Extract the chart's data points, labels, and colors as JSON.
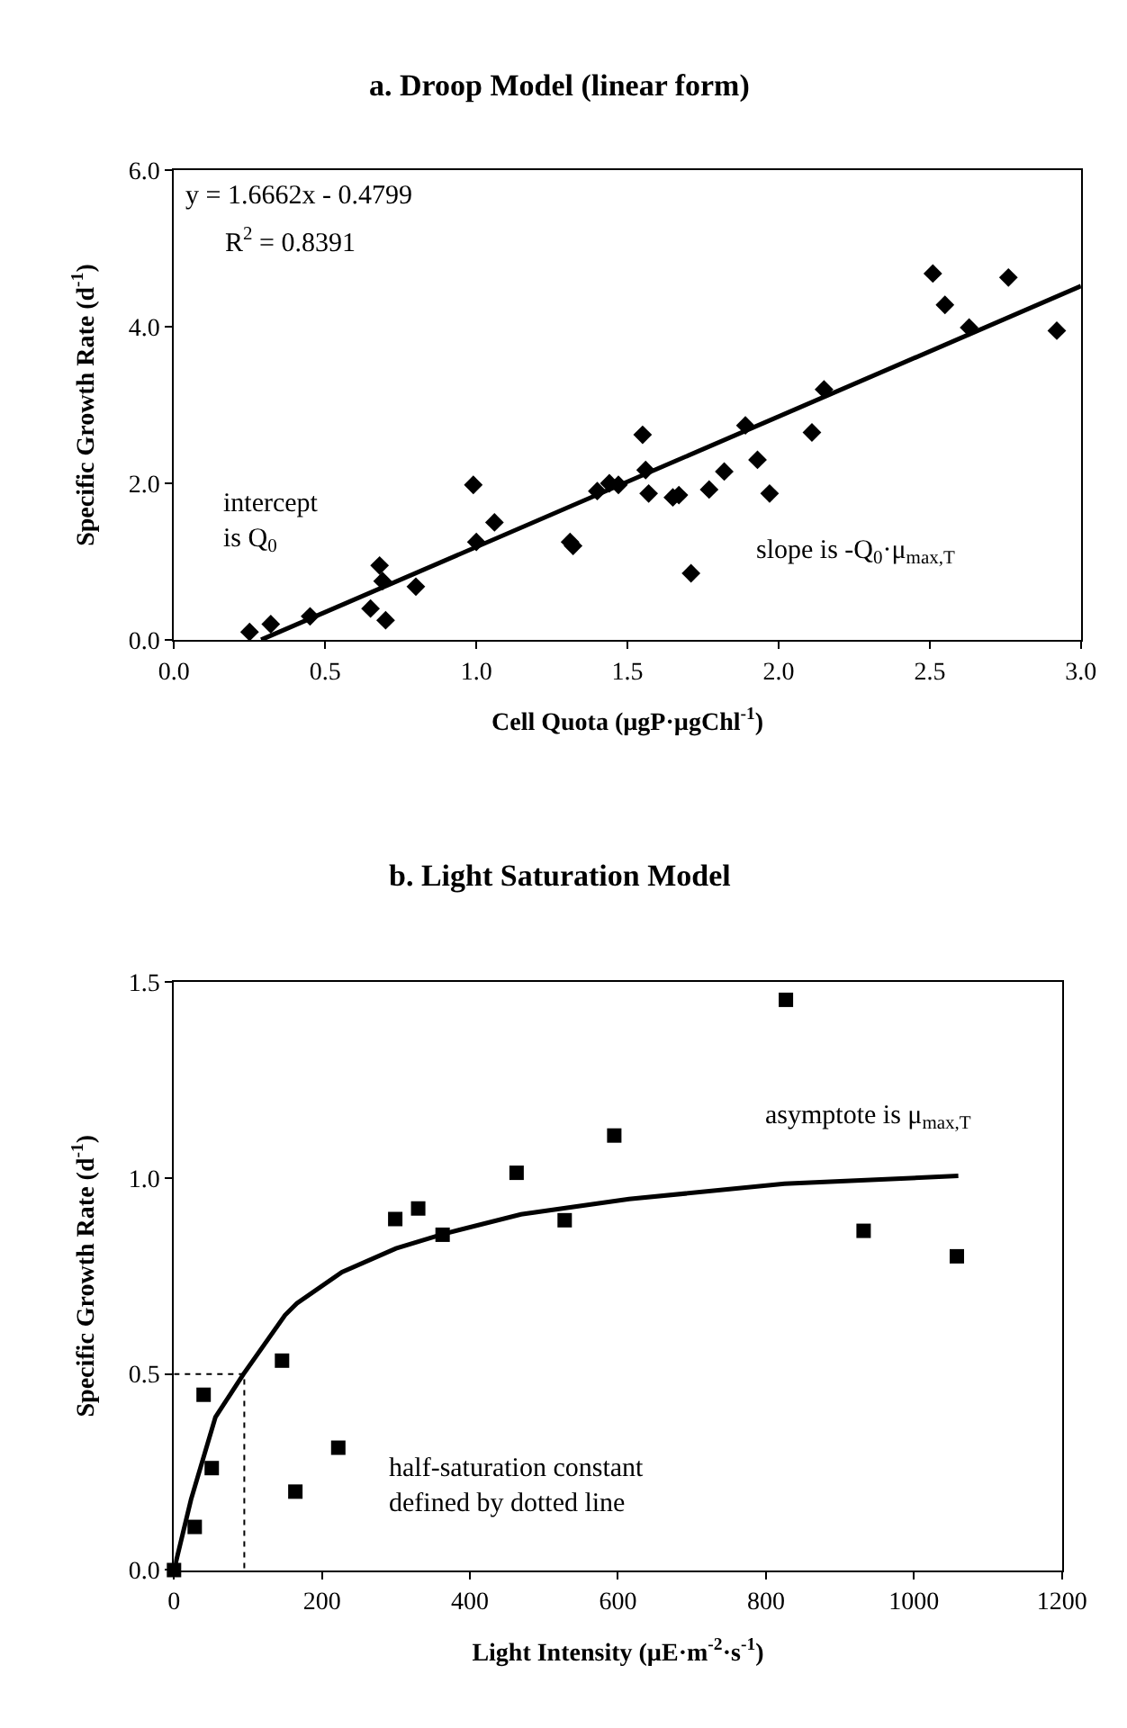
{
  "chart_data": [
    {
      "type": "scatter",
      "title": "a. Droop Model (linear form)",
      "xlabel": "Cell Quota (µgP·µgChl$^{-1}$)",
      "ylabel": "Specific Growth Rate (d$^{-1}$)",
      "xlim": [
        0,
        3
      ],
      "xticks": [
        {
          "value": 0,
          "label": "0.0"
        },
        0.5,
        {
          "value": 1,
          "label": "1.0"
        },
        1.5,
        {
          "value": 2,
          "label": "2.0"
        },
        2.5,
        {
          "value": 3,
          "label": "3.0"
        }
      ],
      "ylim": [
        0,
        6
      ],
      "yticks": [
        {
          "value": 0,
          "label": "0.0"
        },
        {
          "value": 2,
          "label": "2.0"
        },
        {
          "value": 4,
          "label": "4.0"
        },
        {
          "value": 6,
          "label": "6.0"
        }
      ],
      "marker": "diamond",
      "annotations": [
        "y = 1.6662x - 0.4799",
        "R$^{2}$ = 0.8391",
        "intercept\nis Q$_{0}$",
        "slope is -Q$_{0}$·μ$_{max,T}$"
      ],
      "series": [
        {
          "color": "#000000",
          "x": [
            0.25,
            0.32,
            0.45,
            0.65,
            0.68,
            0.69,
            0.7,
            0.8,
            0.99,
            1.0,
            1.06,
            1.31,
            1.32,
            1.4,
            1.44,
            1.47,
            1.55,
            1.56,
            1.57,
            1.65,
            1.67,
            1.71,
            1.77,
            1.82,
            1.89,
            1.93,
            1.97,
            2.11,
            2.15,
            2.51,
            2.55,
            2.63,
            2.76,
            2.92
          ],
          "values": [
            0.1,
            0.2,
            0.3,
            0.4,
            0.95,
            0.75,
            0.25,
            0.68,
            1.98,
            1.25,
            1.5,
            1.25,
            1.2,
            1.9,
            2.0,
            1.98,
            2.62,
            2.17,
            1.87,
            1.82,
            1.85,
            0.85,
            1.92,
            2.15,
            2.74,
            2.3,
            1.87,
            2.65,
            3.2,
            4.68,
            4.28,
            3.99,
            4.63,
            3.95
          ]
        },
        {
          "type": "line",
          "marker": "none",
          "color": "#000000",
          "line_style": "solid",
          "x": [
            0.288,
            3.0
          ],
          "values": [
            0.0,
            4.52
          ]
        }
      ]
    },
    {
      "type": "scatter",
      "title": "b. Light Saturation Model",
      "xlabel": "Light Intensity (µE·m$^{-2}$·s$^{-1}$)",
      "ylabel": "Specific Growth Rate (d$^{-1}$)",
      "xlim": [
        0,
        1200
      ],
      "xticks": [
        0,
        200,
        400,
        600,
        800,
        1000,
        1200
      ],
      "ylim": [
        0,
        1.5
      ],
      "yticks": [
        {
          "value": 0,
          "label": "0.0"
        },
        0.5,
        {
          "value": 1,
          "label": "1.0"
        },
        1.5
      ],
      "marker": "square",
      "annotations": [
        "asymptote is μ$_{max,T}$",
        "half-saturation constant\ndefined by dotted line"
      ],
      "series": [
        {
          "type": "line",
          "marker": "none",
          "color": "#000000",
          "line_style": "dotted",
          "x": [
            0,
            95,
            95
          ],
          "values": [
            0.5,
            0.5,
            0
          ]
        },
        {
          "type": "line",
          "marker": "none",
          "color": "#000000",
          "line_style": "solid",
          "x": [
            0,
            23,
            56,
            94,
            150,
            166,
            227,
            300,
            364,
            469,
            615,
            825,
            1060
          ],
          "values": [
            0,
            0.18,
            0.39,
            0.5,
            0.65,
            0.68,
            0.76,
            0.82,
            0.857,
            0.907,
            0.946,
            0.985,
            1.005
          ]
        },
        {
          "color": "#000000",
          "x": [
            0,
            28,
            40,
            51,
            146,
            164,
            222,
            299,
            330,
            363,
            463,
            528,
            595,
            827,
            932,
            1058
          ],
          "values": [
            0,
            0.11,
            0.447,
            0.26,
            0.534,
            0.2,
            0.312,
            0.895,
            0.922,
            0.855,
            1.013,
            0.892,
            1.108,
            1.454,
            0.865,
            0.8
          ]
        }
      ]
    }
  ]
}
